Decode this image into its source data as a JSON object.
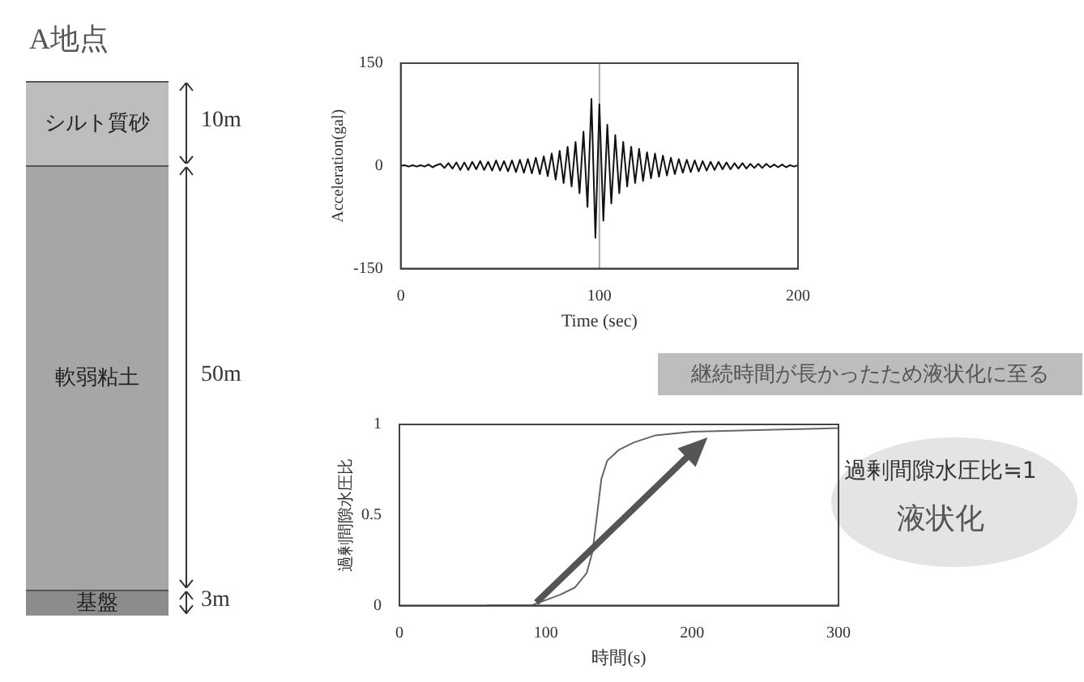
{
  "chart_data": [
    {
      "type": "other",
      "title": "A地点",
      "categories": [
        "シルト質砂",
        "軟弱粘土",
        "基盤"
      ],
      "values": [
        10,
        50,
        3
      ],
      "value_labels": [
        "10m",
        "50m",
        "3m"
      ],
      "colors": [
        "#bdbdbd",
        "#a6a6a6",
        "#8c8c8c"
      ]
    },
    {
      "type": "line",
      "xlabel": "Time (sec)",
      "ylabel": "Acceleration(gal)",
      "xlim": [
        0,
        200
      ],
      "xticks": [
        0,
        100,
        200
      ],
      "ylim": [
        -150,
        150
      ],
      "yticks": [
        -150,
        0,
        150
      ],
      "grid": false,
      "legend": false,
      "marker": "none",
      "x": [
        0,
        2,
        4,
        6,
        8,
        10,
        12,
        14,
        16,
        18,
        20,
        22,
        24,
        26,
        28,
        30,
        32,
        34,
        36,
        38,
        40,
        42,
        44,
        46,
        48,
        50,
        52,
        54,
        56,
        58,
        60,
        62,
        64,
        66,
        68,
        70,
        72,
        74,
        76,
        78,
        80,
        82,
        84,
        86,
        88,
        90,
        92,
        94,
        96,
        98,
        100,
        102,
        104,
        106,
        108,
        110,
        112,
        114,
        116,
        118,
        120,
        122,
        124,
        126,
        128,
        130,
        132,
        134,
        136,
        138,
        140,
        142,
        144,
        146,
        148,
        150,
        152,
        154,
        156,
        158,
        160,
        162,
        164,
        166,
        168,
        170,
        172,
        174,
        176,
        178,
        180,
        182,
        184,
        186,
        188,
        190,
        192,
        194,
        196,
        198,
        200
      ],
      "series": [
        {
          "color": "#111111",
          "values": [
            0,
            1,
            -1,
            1,
            -1,
            1,
            -1,
            2,
            -2,
            1,
            3,
            -3,
            4,
            -4,
            5,
            -6,
            5,
            -6,
            6,
            -5,
            7,
            -6,
            6,
            -7,
            8,
            -7,
            7,
            -8,
            8,
            -9,
            9,
            -10,
            10,
            -11,
            12,
            -12,
            14,
            -15,
            18,
            -20,
            22,
            -25,
            28,
            -30,
            35,
            -40,
            50,
            -60,
            98,
            -105,
            90,
            -80,
            60,
            -55,
            45,
            -40,
            35,
            -30,
            28,
            -25,
            25,
            -22,
            20,
            -18,
            18,
            -16,
            15,
            -14,
            12,
            -12,
            10,
            -10,
            9,
            -9,
            8,
            -8,
            7,
            -7,
            6,
            -6,
            6,
            -5,
            5,
            -5,
            4,
            -4,
            4,
            -4,
            3,
            -3,
            3,
            -3,
            3,
            -2,
            2,
            -2,
            2,
            -2,
            1,
            -1,
            1
          ]
        }
      ],
      "ref_lines": [
        {
          "axis": "x",
          "value": 100,
          "color": "#aaaaaa"
        }
      ]
    },
    {
      "type": "line",
      "xlabel": "時間(s)",
      "ylabel": "過剰間隙水圧比",
      "xlim": [
        0,
        300
      ],
      "xticks": [
        0,
        100,
        200,
        300
      ],
      "ylim": [
        0,
        1
      ],
      "yticks": [
        0,
        0.5,
        1
      ],
      "grid": false,
      "legend": false,
      "marker": "none",
      "x": [
        60,
        90,
        100,
        110,
        120,
        128,
        132,
        135,
        138,
        142,
        150,
        160,
        175,
        200,
        250,
        300
      ],
      "series": [
        {
          "color": "#666666",
          "values": [
            0,
            0,
            0.03,
            0.06,
            0.1,
            0.18,
            0.3,
            0.5,
            0.7,
            0.8,
            0.86,
            0.9,
            0.94,
            0.96,
            0.97,
            0.98
          ]
        }
      ],
      "annotations": [
        "継続時間が長かったため液状化に至る",
        "過剰間隙水圧比≒1",
        "液状化"
      ]
    }
  ]
}
